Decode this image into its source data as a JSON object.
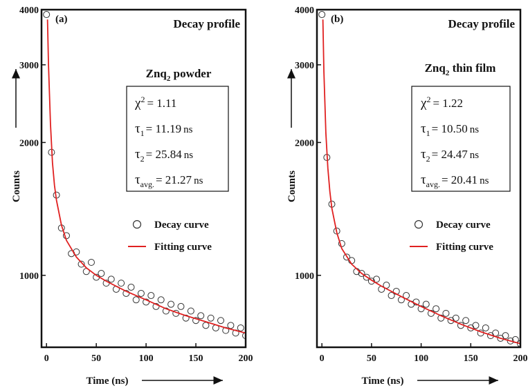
{
  "chart_data": [
    {
      "type": "scatter",
      "panel_label": "(a)",
      "title": "Decay profile",
      "sample": {
        "prefix": "Znq",
        "sub": "2",
        "suffix": " powder"
      },
      "stats": [
        {
          "label": "χ",
          "sup": "2",
          "eq": "= 1.11"
        },
        {
          "label": "τ",
          "sub": "1",
          "eq": "= 11.19",
          "unit": "ns"
        },
        {
          "label": "τ",
          "sub": "2",
          "eq": "= 25.84",
          "unit": "ns"
        },
        {
          "label": "τ",
          "sub": "avg.",
          "eq": "= 21.27",
          "unit": "ns"
        }
      ],
      "x_label": "Time (ns)",
      "y_label": "Counts",
      "log_y": true,
      "xlim": [
        -5,
        200
      ],
      "xticks": [
        0,
        50,
        100,
        150,
        200
      ],
      "ylim": [
        687,
        4000
      ],
      "yticks": [
        1000,
        2000,
        3000,
        4000
      ],
      "series": [
        {
          "name": "Decay curve",
          "marker": "circle",
          "color": "#333333",
          "x": [
            0,
            5,
            10,
            15,
            20,
            25,
            30,
            35,
            40,
            45,
            50,
            55,
            60,
            65,
            70,
            75,
            80,
            85,
            90,
            95,
            100,
            105,
            110,
            115,
            120,
            125,
            130,
            135,
            140,
            145,
            150,
            155,
            160,
            165,
            170,
            175,
            180,
            185,
            190,
            195,
            200
          ],
          "values": [
            3900,
            1900,
            1520,
            1280,
            1230,
            1120,
            1130,
            1060,
            1020,
            1070,
            990,
            1010,
            960,
            980,
            930,
            960,
            910,
            940,
            880,
            910,
            870,
            900,
            850,
            880,
            830,
            860,
            820,
            850,
            800,
            830,
            790,
            810,
            770,
            800,
            760,
            790,
            750,
            770,
            740,
            760,
            730
          ]
        },
        {
          "name": "Fitting curve",
          "marker": "line",
          "color": "#e02020",
          "x": [
            1,
            2,
            4,
            6,
            8,
            10,
            15,
            20,
            30,
            40,
            50,
            60,
            80,
            100,
            120,
            140,
            160,
            180,
            200
          ],
          "values": [
            3800,
            3000,
            2200,
            1800,
            1600,
            1480,
            1300,
            1200,
            1100,
            1040,
            1000,
            970,
            920,
            880,
            840,
            810,
            785,
            760,
            740
          ]
        }
      ]
    },
    {
      "type": "scatter",
      "panel_label": "(b)",
      "title": "Decay profile",
      "sample": {
        "prefix": "Znq",
        "sub": "2",
        "suffix": " thin film"
      },
      "stats": [
        {
          "label": "χ",
          "sup": "2",
          "eq": "= 1.22"
        },
        {
          "label": "τ",
          "sub": "1",
          "eq": "= 10.50",
          "unit": "ns"
        },
        {
          "label": "τ",
          "sub": "2",
          "eq": "= 24.47",
          "unit": "ns"
        },
        {
          "label": "τ",
          "sub": "avg.",
          "eq": "= 20.41",
          "unit": "ns"
        }
      ],
      "x_label": "Time (ns)",
      "y_label": "Counts",
      "log_y": true,
      "xlim": [
        -5,
        200
      ],
      "xticks": [
        0,
        50,
        100,
        150,
        200
      ],
      "ylim": [
        687,
        4000
      ],
      "yticks": [
        1000,
        2000,
        3000,
        4000
      ],
      "series": [
        {
          "name": "Decay curve",
          "marker": "circle",
          "color": "#333333",
          "x": [
            0,
            5,
            10,
            15,
            20,
            25,
            30,
            35,
            40,
            45,
            50,
            55,
            60,
            65,
            70,
            75,
            80,
            85,
            90,
            95,
            100,
            105,
            110,
            115,
            120,
            125,
            130,
            135,
            140,
            145,
            150,
            155,
            160,
            165,
            170,
            175,
            180,
            185,
            190,
            195,
            200
          ],
          "values": [
            3900,
            1850,
            1450,
            1260,
            1180,
            1100,
            1080,
            1020,
            1010,
            990,
            970,
            980,
            930,
            950,
            900,
            920,
            880,
            900,
            860,
            870,
            840,
            860,
            820,
            840,
            800,
            820,
            790,
            800,
            770,
            790,
            760,
            770,
            740,
            760,
            730,
            740,
            720,
            730,
            710,
            715,
            700
          ]
        },
        {
          "name": "Fitting curve",
          "marker": "line",
          "color": "#e02020",
          "x": [
            1,
            2,
            4,
            6,
            8,
            10,
            15,
            20,
            30,
            40,
            50,
            60,
            80,
            100,
            120,
            140,
            160,
            180,
            200
          ],
          "values": [
            3800,
            2900,
            2100,
            1750,
            1550,
            1420,
            1250,
            1150,
            1060,
            1010,
            975,
            945,
            895,
            850,
            810,
            775,
            745,
            720,
            700
          ]
        }
      ]
    }
  ]
}
